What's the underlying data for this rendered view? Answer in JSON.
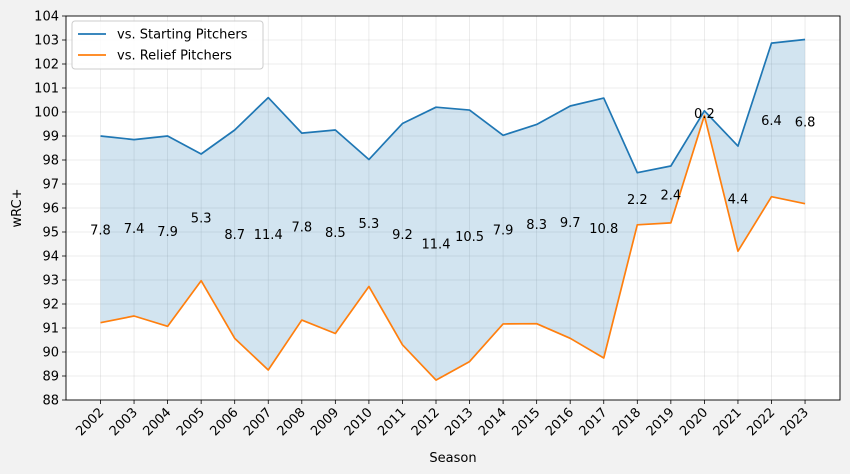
{
  "chart_data": {
    "type": "line",
    "xlabel": "Season",
    "ylabel": "wRC+",
    "ylim": [
      88,
      104
    ],
    "yticks": [
      88,
      89,
      90,
      91,
      92,
      93,
      94,
      95,
      96,
      97,
      98,
      99,
      100,
      101,
      102,
      103,
      104
    ],
    "categories": [
      "2002",
      "2003",
      "2004",
      "2005",
      "2006",
      "2007",
      "2008",
      "2009",
      "2010",
      "2011",
      "2012",
      "2013",
      "2014",
      "2015",
      "2016",
      "2017",
      "2018",
      "2019",
      "2020",
      "2021",
      "2022",
      "2023"
    ],
    "grid": true,
    "legend_position": "top-left",
    "series": [
      {
        "name": "vs. Starting Pitchers",
        "color": "#1f77b4",
        "values": [
          99.0,
          98.85,
          99.0,
          98.25,
          99.25,
          100.6,
          99.12,
          99.25,
          98.02,
          99.52,
          100.2,
          100.08,
          99.03,
          99.48,
          100.25,
          100.58,
          97.47,
          97.75,
          100.05,
          98.58,
          102.87,
          103.02
        ]
      },
      {
        "name": "vs. Relief Pitchers",
        "color": "#ff7f0e",
        "values": [
          91.22,
          91.5,
          91.07,
          92.97,
          90.57,
          89.25,
          91.33,
          90.77,
          92.73,
          90.3,
          88.83,
          89.6,
          91.17,
          91.18,
          90.57,
          89.75,
          95.3,
          95.38,
          99.85,
          94.2,
          96.47,
          96.18
        ]
      }
    ],
    "fill_between": {
      "color": "#1f77b4",
      "opacity": 0.2
    },
    "annotations": [
      "7.8",
      "7.4",
      "7.9",
      "5.3",
      "8.7",
      "11.4",
      "7.8",
      "8.5",
      "5.3",
      "9.2",
      "11.4",
      "10.5",
      "7.9",
      "8.3",
      "9.7",
      "10.8",
      "2.2",
      "2.4",
      "0.2",
      "4.4",
      "6.4",
      "6.8"
    ]
  }
}
